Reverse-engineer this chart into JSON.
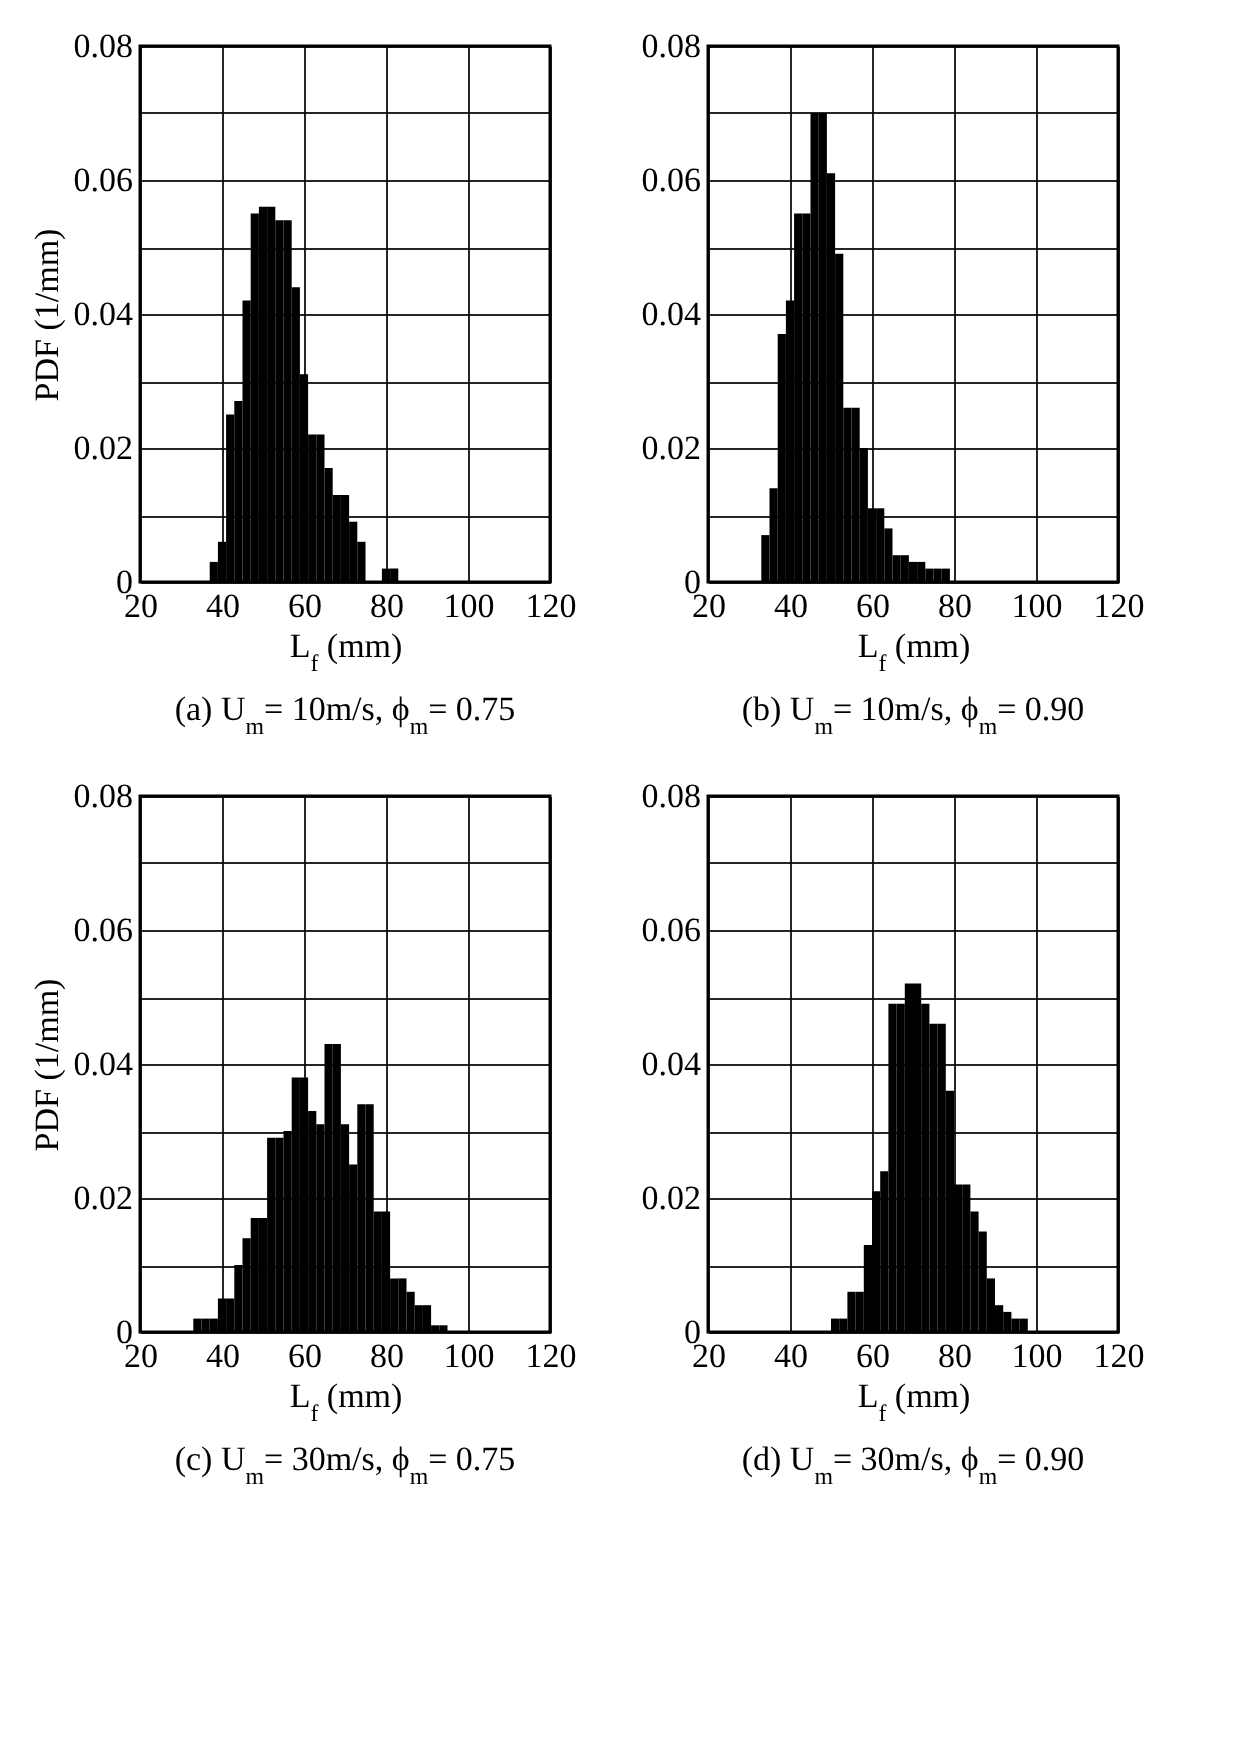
{
  "chart_data": [
    {
      "type": "histogram",
      "title": "(a) U$_{m}$= 10m/s, ϕ$_{m}$= 0.75",
      "xlabel": "L$_{f}$ (mm)",
      "ylabel": "PDF (1/mm)",
      "color": "#000000",
      "grid": true,
      "bins": [
        37,
        39,
        41,
        43,
        45,
        47,
        49,
        51,
        53,
        55,
        57,
        59,
        61,
        63,
        65,
        67,
        69,
        71,
        73,
        75,
        77,
        79,
        81,
        83
      ],
      "values": [
        0.003,
        0.006,
        0.025,
        0.027,
        0.042,
        0.055,
        0.056,
        0.056,
        0.054,
        0.054,
        0.044,
        0.031,
        0.022,
        0.022,
        0.017,
        0.013,
        0.013,
        0.009,
        0.006,
        0,
        0,
        0.002,
        0.002
      ],
      "xlim": [
        20,
        120
      ],
      "xticks": [
        20,
        40,
        60,
        80,
        100,
        120
      ],
      "ylim": [
        0,
        0.08
      ],
      "yticks": [
        0,
        {
          "value": 0.01,
          "label": null
        },
        0.02,
        {
          "value": 0.03,
          "label": null
        },
        0.04,
        {
          "value": 0.05,
          "label": null
        },
        0.06,
        {
          "value": 0.07,
          "label": null
        },
        0.08
      ]
    },
    {
      "type": "histogram",
      "title": "(b) U$_{m}$= 10m/s, ϕ$_{m}$= 0.90",
      "xlabel": "L$_{f}$ (mm)",
      "color": "#000000",
      "grid": true,
      "bins": [
        33,
        35,
        37,
        39,
        41,
        43,
        45,
        47,
        49,
        51,
        53,
        55,
        57,
        59,
        61,
        63,
        65,
        67,
        69,
        71,
        73,
        75,
        77,
        79
      ],
      "values": [
        0.007,
        0.014,
        0.037,
        0.042,
        0.055,
        0.055,
        0.07,
        0.07,
        0.061,
        0.049,
        0.026,
        0.026,
        0.02,
        0.011,
        0.011,
        0.008,
        0.004,
        0.004,
        0.003,
        0.003,
        0.002,
        0.002,
        0.002
      ],
      "xlim": [
        20,
        120
      ],
      "xticks": [
        20,
        40,
        60,
        80,
        100,
        120
      ],
      "ylim": [
        0,
        0.08
      ],
      "yticks": [
        0,
        {
          "value": 0.01,
          "label": null
        },
        0.02,
        {
          "value": 0.03,
          "label": null
        },
        0.04,
        {
          "value": 0.05,
          "label": null
        },
        0.06,
        {
          "value": 0.07,
          "label": null
        },
        0.08
      ]
    },
    {
      "type": "histogram",
      "title": "(c) U$_{m}$= 30m/s, ϕ$_{m}$= 0.75",
      "xlabel": "L$_{f}$ (mm)",
      "ylabel": "PDF (1/mm)",
      "color": "#000000",
      "grid": true,
      "bins": [
        33,
        35,
        37,
        39,
        41,
        43,
        45,
        47,
        49,
        51,
        53,
        55,
        57,
        59,
        61,
        63,
        65,
        67,
        69,
        71,
        73,
        75,
        77,
        79,
        81,
        83,
        85,
        87,
        89,
        91,
        93,
        95
      ],
      "values": [
        0.002,
        0.002,
        0.002,
        0.005,
        0.005,
        0.01,
        0.014,
        0.017,
        0.017,
        0.029,
        0.029,
        0.03,
        0.038,
        0.038,
        0.033,
        0.031,
        0.043,
        0.043,
        0.031,
        0.025,
        0.034,
        0.034,
        0.018,
        0.018,
        0.008,
        0.008,
        0.006,
        0.004,
        0.004,
        0.001,
        0.001
      ],
      "xlim": [
        20,
        120
      ],
      "xticks": [
        20,
        40,
        60,
        80,
        100,
        120
      ],
      "ylim": [
        0,
        0.08
      ],
      "yticks": [
        0,
        {
          "value": 0.01,
          "label": null
        },
        0.02,
        {
          "value": 0.03,
          "label": null
        },
        0.04,
        {
          "value": 0.05,
          "label": null
        },
        0.06,
        {
          "value": 0.07,
          "label": null
        },
        0.08
      ]
    },
    {
      "type": "histogram",
      "title": "(d) U$_{m}$= 30m/s, ϕ$_{m}$= 0.90",
      "xlabel": "L$_{f}$ (mm)",
      "color": "#000000",
      "grid": true,
      "bins": [
        50,
        52,
        54,
        56,
        58,
        60,
        62,
        64,
        66,
        68,
        70,
        72,
        74,
        76,
        78,
        80,
        82,
        84,
        86,
        88,
        90,
        92,
        94,
        96,
        98
      ],
      "values": [
        0.002,
        0.002,
        0.006,
        0.006,
        0.013,
        0.021,
        0.024,
        0.049,
        0.049,
        0.052,
        0.052,
        0.049,
        0.046,
        0.046,
        0.036,
        0.022,
        0.022,
        0.018,
        0.015,
        0.008,
        0.004,
        0.003,
        0.002,
        0.002
      ],
      "xlim": [
        20,
        120
      ],
      "xticks": [
        20,
        40,
        60,
        80,
        100,
        120
      ],
      "ylim": [
        0,
        0.08
      ],
      "yticks": [
        0,
        {
          "value": 0.01,
          "label": null
        },
        0.02,
        {
          "value": 0.03,
          "label": null
        },
        0.04,
        {
          "value": 0.05,
          "label": null
        },
        0.06,
        {
          "value": 0.07,
          "label": null
        },
        0.08
      ]
    }
  ]
}
